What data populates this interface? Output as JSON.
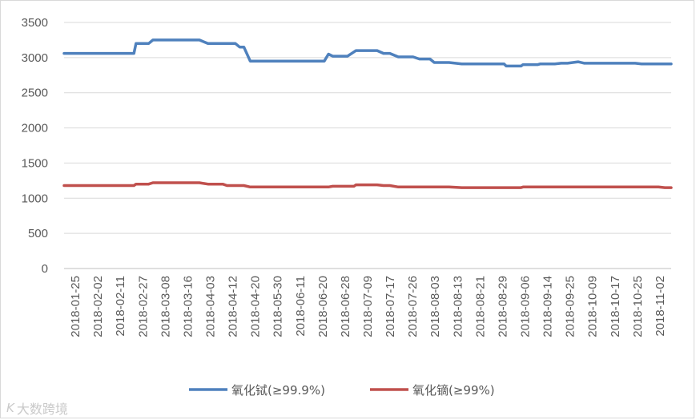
{
  "chart_data": {
    "type": "line",
    "title": "",
    "xlabel": "",
    "ylabel": "",
    "ylim": [
      0,
      3500
    ],
    "y_ticks": [
      "0",
      "500",
      "1000",
      "1500",
      "2000",
      "2500",
      "3000",
      "3500"
    ],
    "grid": true,
    "legend_position": "bottom",
    "x_tick_labels": [
      "2018-01-25",
      "2018-02-02",
      "2018-02-11",
      "2018-02-27",
      "2018-03-08",
      "2018-03-16",
      "2018-04-03",
      "2018-04-12",
      "2018-04-20",
      "2018-05-30",
      "2018-06-11",
      "2018-06-20",
      "2018-06-28",
      "2018-07-09",
      "2018-07-17",
      "2018-07-26",
      "2018-08-03",
      "2018-08-13",
      "2018-08-21",
      "2018-08-29",
      "2018-09-06",
      "2018-09-14",
      "2018-09-25",
      "2018-10-09",
      "2018-10-17",
      "2018-10-25",
      "2018-11-02"
    ],
    "series": [
      {
        "name": "氧化铽(≥99.9%)",
        "color": "#4f81bd",
        "points": [
          [
            "2018-01-25",
            3060
          ],
          [
            "2018-02-27",
            3060
          ],
          [
            "2018-02-28",
            3200
          ],
          [
            "2018-03-06",
            3200
          ],
          [
            "2018-03-08",
            3250
          ],
          [
            "2018-03-30",
            3250
          ],
          [
            "2018-04-03",
            3200
          ],
          [
            "2018-04-16",
            3200
          ],
          [
            "2018-04-18",
            3150
          ],
          [
            "2018-04-20",
            3150
          ],
          [
            "2018-04-23",
            2950
          ],
          [
            "2018-05-28",
            2950
          ],
          [
            "2018-05-30",
            3050
          ],
          [
            "2018-06-01",
            3020
          ],
          [
            "2018-06-08",
            3020
          ],
          [
            "2018-06-12",
            3100
          ],
          [
            "2018-06-22",
            3100
          ],
          [
            "2018-06-25",
            3060
          ],
          [
            "2018-06-28",
            3060
          ],
          [
            "2018-07-02",
            3010
          ],
          [
            "2018-07-09",
            3010
          ],
          [
            "2018-07-12",
            2980
          ],
          [
            "2018-07-17",
            2980
          ],
          [
            "2018-07-19",
            2930
          ],
          [
            "2018-07-26",
            2930
          ],
          [
            "2018-08-01",
            2910
          ],
          [
            "2018-08-21",
            2910
          ],
          [
            "2018-08-22",
            2880
          ],
          [
            "2018-08-29",
            2880
          ],
          [
            "2018-08-30",
            2900
          ],
          [
            "2018-09-06",
            2900
          ],
          [
            "2018-09-07",
            2910
          ],
          [
            "2018-09-14",
            2910
          ],
          [
            "2018-09-17",
            2920
          ],
          [
            "2018-09-20",
            2920
          ],
          [
            "2018-09-25",
            2940
          ],
          [
            "2018-09-28",
            2920
          ],
          [
            "2018-10-22",
            2920
          ],
          [
            "2018-10-25",
            2910
          ],
          [
            "2018-11-08",
            2910
          ]
        ]
      },
      {
        "name": "氧化镝(≥99%)",
        "color": "#c0504d",
        "points": [
          [
            "2018-01-25",
            1180
          ],
          [
            "2018-02-27",
            1180
          ],
          [
            "2018-02-28",
            1200
          ],
          [
            "2018-03-06",
            1200
          ],
          [
            "2018-03-08",
            1220
          ],
          [
            "2018-03-30",
            1220
          ],
          [
            "2018-04-03",
            1200
          ],
          [
            "2018-04-10",
            1200
          ],
          [
            "2018-04-12",
            1180
          ],
          [
            "2018-04-20",
            1180
          ],
          [
            "2018-04-23",
            1160
          ],
          [
            "2018-05-30",
            1160
          ],
          [
            "2018-06-01",
            1170
          ],
          [
            "2018-06-11",
            1170
          ],
          [
            "2018-06-12",
            1190
          ],
          [
            "2018-06-22",
            1190
          ],
          [
            "2018-06-25",
            1180
          ],
          [
            "2018-06-28",
            1180
          ],
          [
            "2018-07-02",
            1160
          ],
          [
            "2018-07-26",
            1160
          ],
          [
            "2018-08-01",
            1150
          ],
          [
            "2018-08-21",
            1150
          ],
          [
            "2018-08-29",
            1150
          ],
          [
            "2018-08-30",
            1160
          ],
          [
            "2018-11-02",
            1160
          ],
          [
            "2018-11-05",
            1150
          ],
          [
            "2018-11-08",
            1150
          ]
        ]
      }
    ]
  },
  "watermark": {
    "logo": "K",
    "text": "大数跨境"
  }
}
